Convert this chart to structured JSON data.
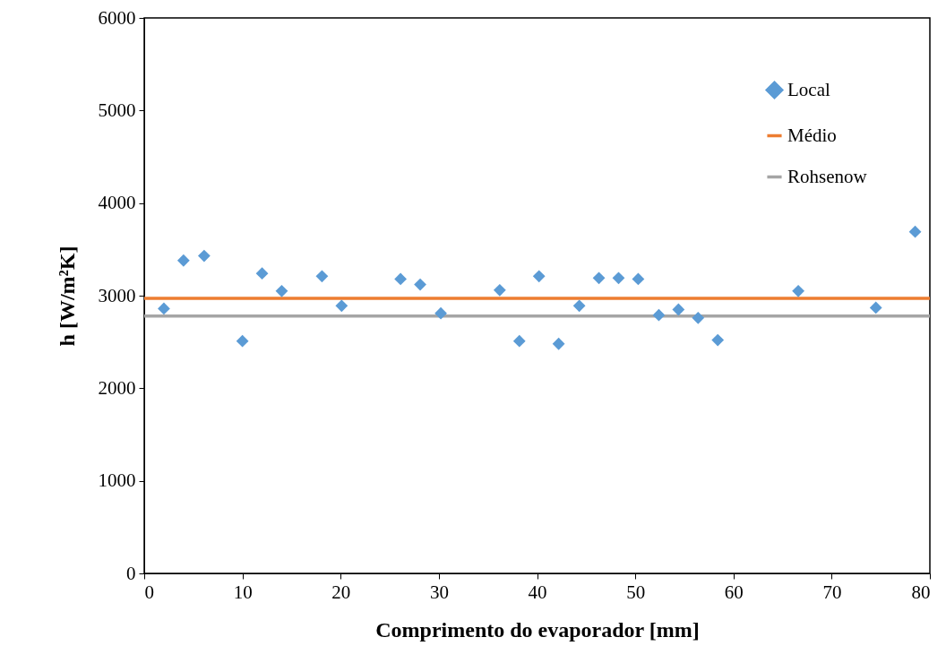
{
  "chart_data": {
    "type": "scatter",
    "xlabel": "Comprimento do evaporador [mm]",
    "ylabel": "h [W/m²K]",
    "xlim": [
      0,
      80
    ],
    "xticks": [
      0,
      10,
      20,
      30,
      40,
      50,
      60,
      70,
      80
    ],
    "ylim": [
      0,
      6000
    ],
    "yticks": [
      0,
      1000,
      2000,
      3000,
      4000,
      5000,
      6000
    ],
    "grid": false,
    "legend": "top right",
    "series": [
      {
        "name": "Local",
        "color": "#5b9bd5",
        "marker": "diamond",
        "x": [
          2,
          4,
          6.1,
          10,
          12,
          14,
          18.1,
          20.1,
          26.1,
          28.1,
          30.2,
          36.2,
          38.2,
          40.2,
          42.2,
          44.3,
          46.3,
          48.3,
          50.3,
          52.4,
          54.4,
          56.4,
          58.4,
          66.6,
          74.5,
          78.5
        ],
        "values": [
          2860,
          3380,
          3430,
          2510,
          3240,
          3050,
          3210,
          2890,
          3180,
          3120,
          2810,
          3060,
          2510,
          3210,
          2480,
          2890,
          3190,
          3190,
          3180,
          2790,
          2850,
          2760,
          2520,
          3050,
          2870,
          3690
        ]
      },
      {
        "name": "Médio",
        "type": "line",
        "color": "#ed7d31",
        "x": [
          0,
          80
        ],
        "values": [
          2970,
          2970
        ]
      },
      {
        "name": "Rohsenow",
        "type": "line",
        "color": "#a5a5a5",
        "x": [
          0,
          80
        ],
        "values": [
          2780,
          2780
        ]
      }
    ]
  }
}
